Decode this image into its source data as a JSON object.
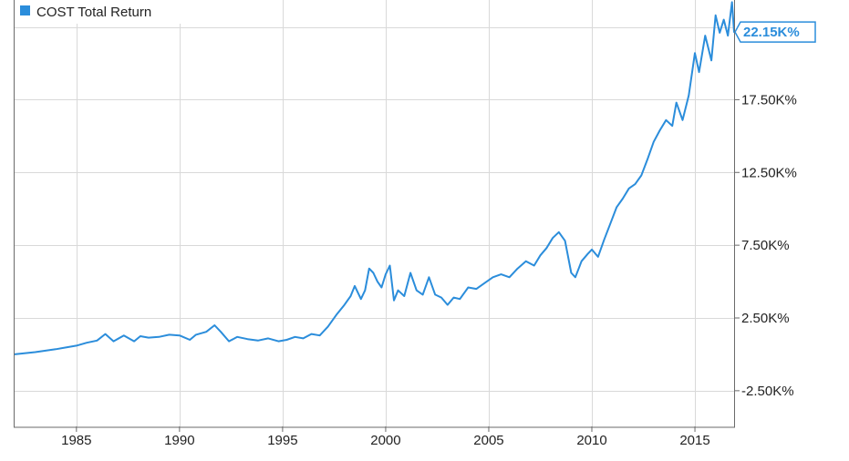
{
  "chart_data": {
    "type": "line",
    "title": "",
    "xlabel": "",
    "ylabel": "",
    "xlim": [
      1982.0,
      2016.9
    ],
    "ylim": [
      -4.95,
      24.35
    ],
    "y_unit_suffix": "K%",
    "grid": true,
    "legend_position": "top-left",
    "x_ticks": [
      {
        "value": 1985,
        "label": "1985"
      },
      {
        "value": 1990,
        "label": "1990"
      },
      {
        "value": 1995,
        "label": "1995"
      },
      {
        "value": 2000,
        "label": "2000"
      },
      {
        "value": 2005,
        "label": "2005"
      },
      {
        "value": 2010,
        "label": "2010"
      },
      {
        "value": 2015,
        "label": "2015"
      }
    ],
    "y_ticks": [
      {
        "value": 17.5,
        "label": "17.50K%"
      },
      {
        "value": 12.5,
        "label": "12.50K%"
      },
      {
        "value": 7.5,
        "label": "7.50K%"
      },
      {
        "value": 2.5,
        "label": "2.50K%"
      },
      {
        "value": -2.5,
        "label": "-2.50K%"
      }
    ],
    "y_gridlines": [
      22.5,
      17.5,
      12.5,
      7.5,
      2.5,
      -2.5
    ],
    "series": [
      {
        "name": "COST Total Return",
        "color": "#2b8ddb",
        "last_value_label": "22.15K%",
        "x": [
          1982.0,
          1983.0,
          1984.0,
          1985.0,
          1985.5,
          1986.0,
          1986.4,
          1986.8,
          1987.3,
          1987.8,
          1988.1,
          1988.5,
          1989.0,
          1989.5,
          1990.0,
          1990.5,
          1990.8,
          1991.3,
          1991.7,
          1992.0,
          1992.4,
          1992.8,
          1993.3,
          1993.8,
          1994.3,
          1994.8,
          1995.2,
          1995.6,
          1996.0,
          1996.4,
          1996.8,
          1997.2,
          1997.6,
          1998.0,
          1998.3,
          1998.5,
          1998.8,
          1999.0,
          1999.2,
          1999.4,
          1999.6,
          1999.8,
          2000.0,
          2000.2,
          2000.4,
          2000.6,
          2000.9,
          2001.2,
          2001.5,
          2001.8,
          2002.1,
          2002.4,
          2002.7,
          2003.0,
          2003.3,
          2003.6,
          2004.0,
          2004.4,
          2004.8,
          2005.2,
          2005.6,
          2006.0,
          2006.4,
          2006.8,
          2007.2,
          2007.5,
          2007.8,
          2008.1,
          2008.4,
          2008.7,
          2009.0,
          2009.2,
          2009.5,
          2009.8,
          2010.0,
          2010.3,
          2010.6,
          2010.9,
          2011.2,
          2011.5,
          2011.8,
          2012.1,
          2012.4,
          2012.7,
          2013.0,
          2013.3,
          2013.6,
          2013.9,
          2014.1,
          2014.4,
          2014.7,
          2015.0,
          2015.2,
          2015.5,
          2015.8,
          2016.0,
          2016.2,
          2016.4,
          2016.6,
          2016.8,
          2016.9
        ],
        "y": [
          0.0,
          0.15,
          0.35,
          0.6,
          0.8,
          0.95,
          1.4,
          0.9,
          1.3,
          0.9,
          1.25,
          1.15,
          1.2,
          1.35,
          1.3,
          1.0,
          1.35,
          1.55,
          2.0,
          1.55,
          0.9,
          1.2,
          1.05,
          0.95,
          1.1,
          0.9,
          1.0,
          1.2,
          1.1,
          1.4,
          1.3,
          1.9,
          2.7,
          3.4,
          4.0,
          4.7,
          3.8,
          4.4,
          5.9,
          5.6,
          5.0,
          4.6,
          5.5,
          6.1,
          3.7,
          4.4,
          4.0,
          5.6,
          4.4,
          4.1,
          5.3,
          4.1,
          3.9,
          3.4,
          3.9,
          3.8,
          4.6,
          4.5,
          4.9,
          5.3,
          5.5,
          5.3,
          5.9,
          6.4,
          6.1,
          6.8,
          7.3,
          8.0,
          8.4,
          7.8,
          5.6,
          5.3,
          6.4,
          6.9,
          7.2,
          6.7,
          7.9,
          9.0,
          10.1,
          10.7,
          11.4,
          11.7,
          12.3,
          13.4,
          14.6,
          15.4,
          16.1,
          15.7,
          17.3,
          16.1,
          17.8,
          20.7,
          19.4,
          21.9,
          20.2,
          23.3,
          22.1,
          23.0,
          21.9,
          24.2,
          22.15
        ]
      }
    ]
  }
}
